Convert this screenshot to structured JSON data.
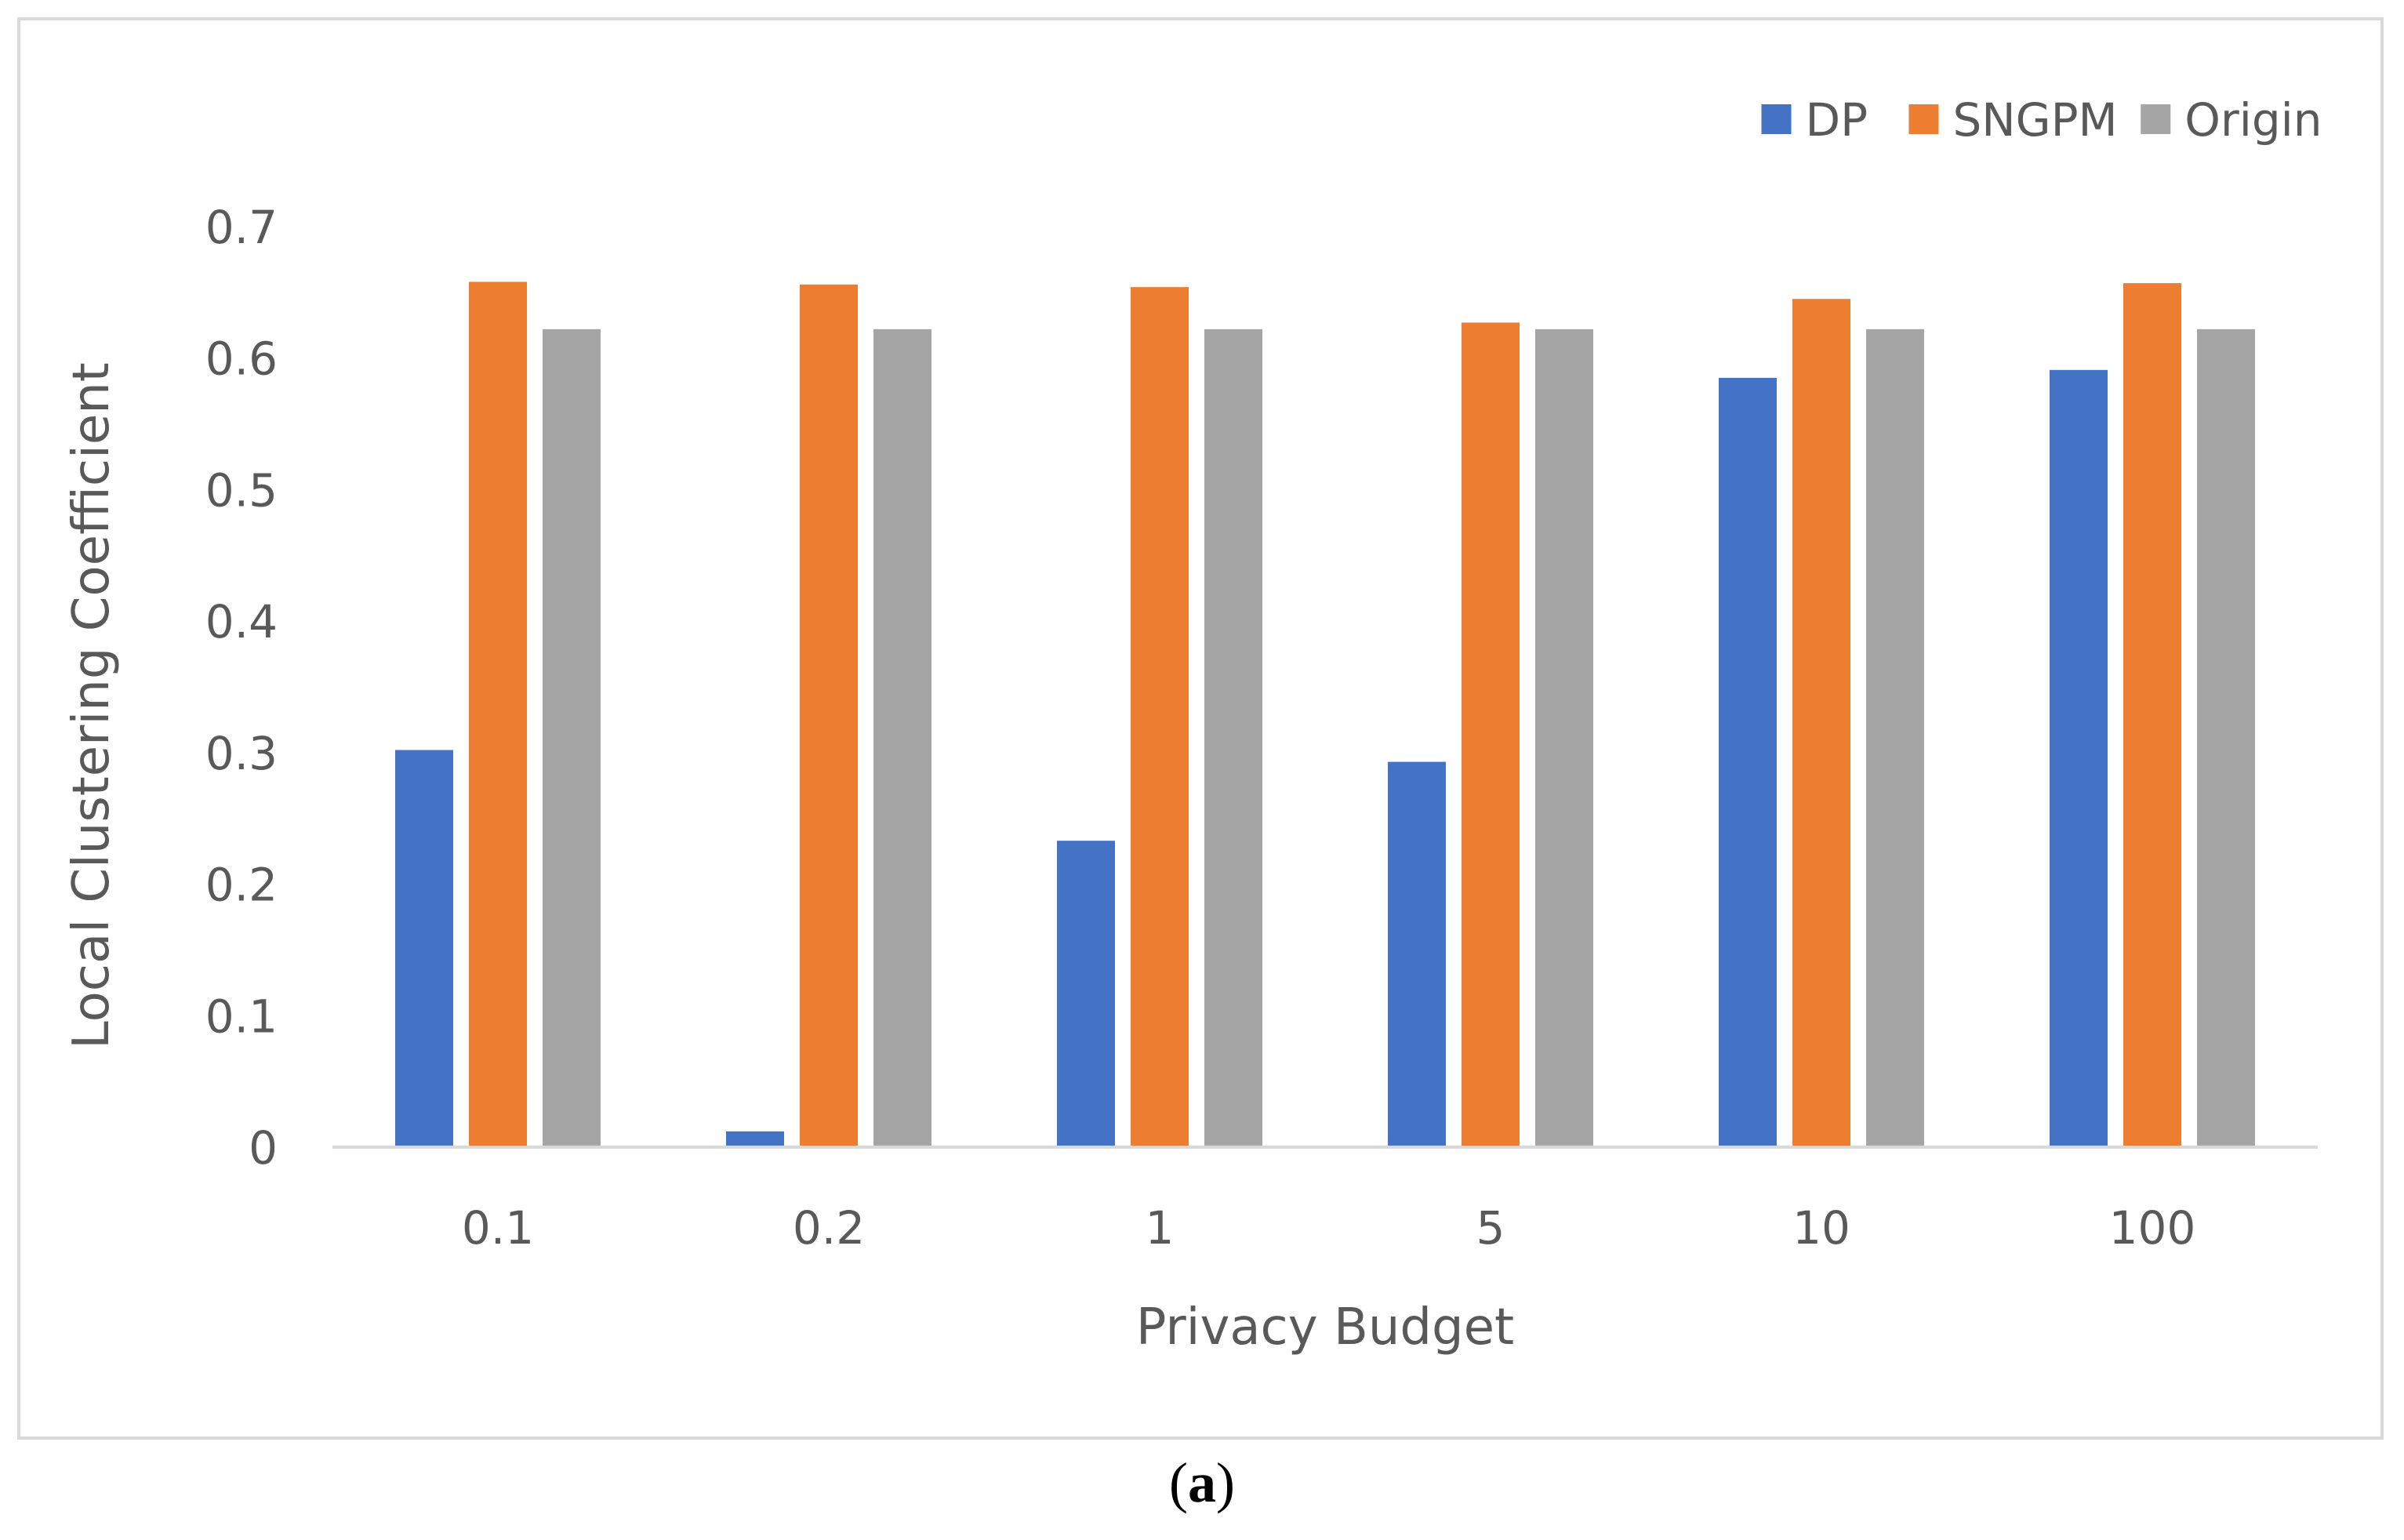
{
  "chart_data": {
    "type": "bar",
    "title": "",
    "xlabel": "Privacy Budget",
    "ylabel": "Local Clustering Coefficient",
    "categories": [
      "0.1",
      "0.2",
      "1",
      "5",
      "10",
      "100"
    ],
    "series": [
      {
        "name": "DP",
        "color": "#4472c4",
        "values": [
          0.302,
          0.012,
          0.233,
          0.293,
          0.585,
          0.591
        ]
      },
      {
        "name": "SNGPM",
        "color": "#ed7d31",
        "values": [
          0.658,
          0.656,
          0.654,
          0.627,
          0.645,
          0.657
        ]
      },
      {
        "name": "Origin",
        "color": "#a5a5a5",
        "values": [
          0.622,
          0.622,
          0.622,
          0.622,
          0.622,
          0.622
        ]
      }
    ],
    "ylim": [
      0,
      0.7
    ],
    "yticks": [
      0,
      0.1,
      0.2,
      0.3,
      0.4,
      0.5,
      0.6,
      0.7
    ],
    "ytick_labels": [
      "0",
      "0.1",
      "0.2",
      "0.3",
      "0.4",
      "0.5",
      "0.6",
      "0.7"
    ],
    "grid": false,
    "legend_position": "top-right"
  },
  "panel_label": {
    "open": "(",
    "letter": "a",
    "close": ")"
  }
}
